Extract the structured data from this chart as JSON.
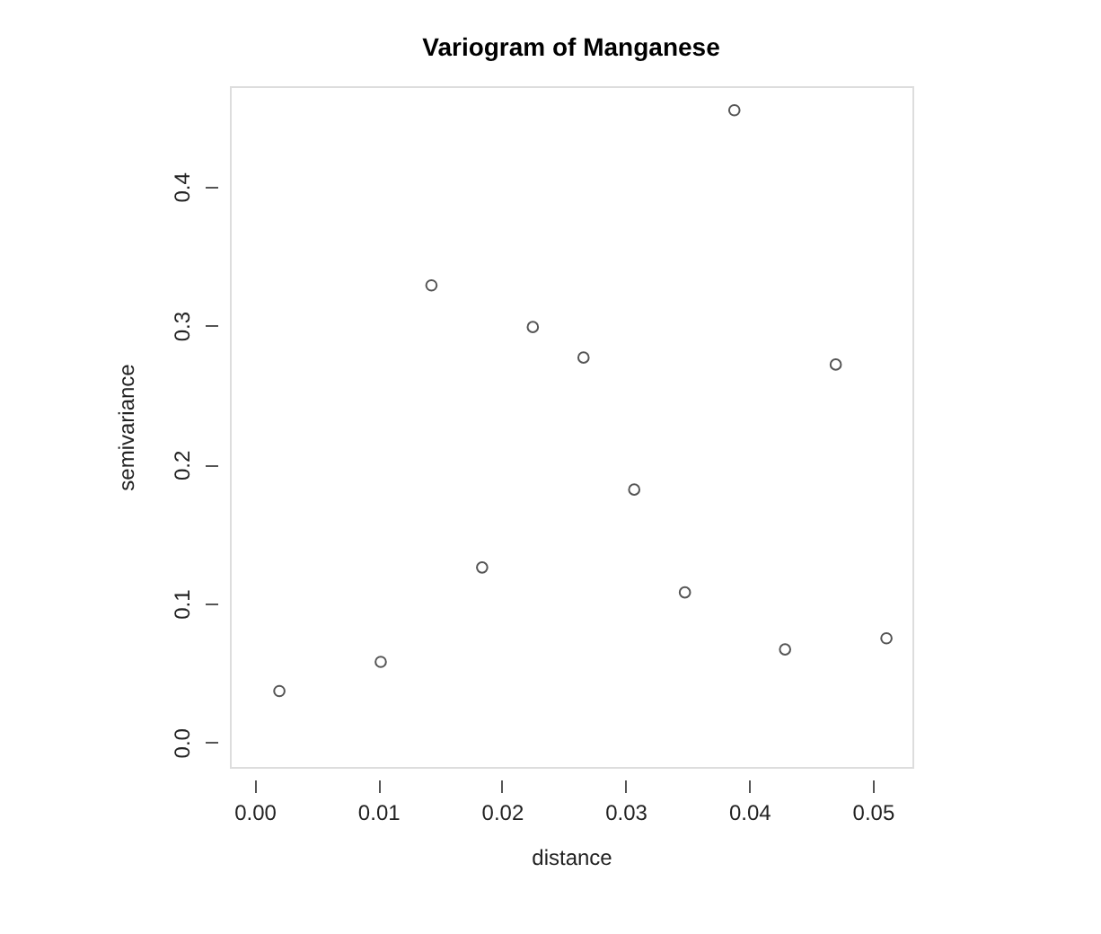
{
  "chart_data": {
    "type": "scatter",
    "title": "Variogram of Manganese",
    "xlabel": "distance",
    "ylabel": "semivariance",
    "x": [
      0.002,
      0.0102,
      0.0143,
      0.0184,
      0.0225,
      0.0266,
      0.0307,
      0.0348,
      0.0388,
      0.0429,
      0.047,
      0.0511
    ],
    "series": [
      {
        "color": "#555555",
        "values": [
          0.037,
          0.058,
          0.329,
          0.126,
          0.299,
          0.277,
          0.182,
          0.108,
          0.455,
          0.067,
          0.272,
          0.075
        ]
      }
    ],
    "xlim": [
      -0.002,
      0.0532
    ],
    "ylim": [
      -0.0176,
      0.4723
    ],
    "xticks": [
      {
        "value": 0,
        "label": "0.00"
      },
      {
        "value": 0.01,
        "label": "0.01"
      },
      {
        "value": 0.02,
        "label": "0.02"
      },
      {
        "value": 0.03,
        "label": "0.03"
      },
      {
        "value": 0.04,
        "label": "0.04"
      },
      {
        "value": 0.05,
        "label": "0.05"
      }
    ],
    "yticks": [
      {
        "value": 0,
        "label": "0.0"
      },
      {
        "value": 0.1,
        "label": "0.1"
      },
      {
        "value": 0.2,
        "label": "0.2"
      },
      {
        "value": 0.3,
        "label": "0.3"
      },
      {
        "value": 0.4,
        "label": "0.4"
      }
    ],
    "marker": "circle",
    "grid": false
  }
}
